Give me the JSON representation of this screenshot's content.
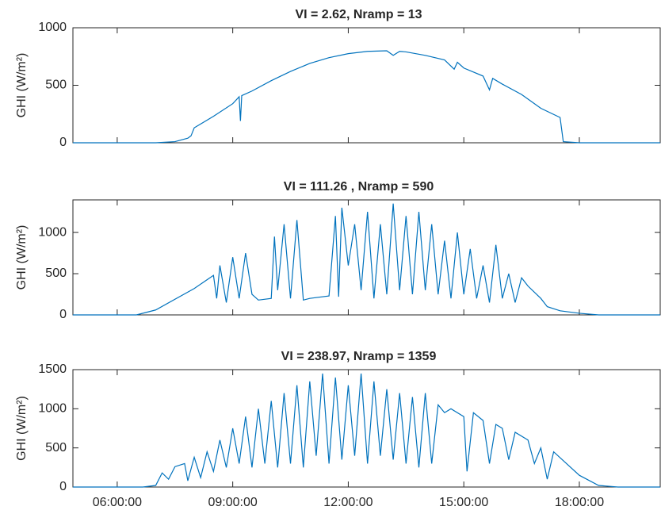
{
  "chart_data": [
    {
      "type": "line",
      "title": "VI = 2.62, Nramp = 13",
      "y_label": "GHI (W/m²)",
      "xlim": [
        "04:51",
        "20:06"
      ],
      "xticks": [
        "06:00:00",
        "09:00:00",
        "12:00:00",
        "15:00:00",
        "18:00:00"
      ],
      "ylim": [
        0,
        1000
      ],
      "yticks": [
        0,
        500,
        1000
      ],
      "series": [
        {
          "color": "#0072bd",
          "x": [
            "04:51",
            "07:00",
            "07:30",
            "07:50",
            "07:55",
            "08:00",
            "08:30",
            "09:00",
            "09:10",
            "09:12",
            "09:14",
            "09:30",
            "10:00",
            "10:30",
            "11:00",
            "11:30",
            "12:00",
            "12:30",
            "13:00",
            "13:10",
            "13:20",
            "13:30",
            "14:00",
            "14:30",
            "14:45",
            "14:50",
            "15:00",
            "15:30",
            "15:40",
            "15:45",
            "16:00",
            "16:30",
            "17:00",
            "17:30",
            "17:35",
            "18:00",
            "20:06"
          ],
          "values": [
            0,
            0,
            10,
            40,
            60,
            130,
            230,
            340,
            400,
            190,
            410,
            450,
            540,
            620,
            690,
            740,
            775,
            795,
            800,
            760,
            795,
            790,
            760,
            720,
            640,
            700,
            650,
            580,
            460,
            560,
            510,
            420,
            300,
            220,
            10,
            0,
            0
          ]
        }
      ]
    },
    {
      "type": "line",
      "title": "VI = 111.26 , Nramp = 590",
      "y_label": "GHI (W/m²)",
      "xlim": [
        "04:51",
        "20:06"
      ],
      "xticks": [
        "06:00:00",
        "09:00:00",
        "12:00:00",
        "15:00:00",
        "18:00:00"
      ],
      "ylim": [
        0,
        1395
      ],
      "yticks": [
        0,
        500,
        1000
      ],
      "series": [
        {
          "color": "#0072bd",
          "x": [
            "04:51",
            "06:30",
            "07:00",
            "08:00",
            "08:30",
            "08:35",
            "08:40",
            "08:50",
            "09:00",
            "09:10",
            "09:20",
            "09:30",
            "09:40",
            "10:00",
            "10:05",
            "10:10",
            "10:20",
            "10:30",
            "10:40",
            "10:50",
            "11:00",
            "11:30",
            "11:40",
            "11:45",
            "11:50",
            "12:00",
            "12:10",
            "12:20",
            "12:30",
            "12:40",
            "12:50",
            "13:00",
            "13:10",
            "13:20",
            "13:30",
            "13:40",
            "13:50",
            "14:00",
            "14:10",
            "14:20",
            "14:30",
            "14:40",
            "14:50",
            "15:00",
            "15:10",
            "15:20",
            "15:30",
            "15:40",
            "15:50",
            "16:00",
            "16:10",
            "16:20",
            "16:30",
            "16:40",
            "17:00",
            "17:10",
            "17:30",
            "18:00",
            "18:30",
            "20:06"
          ],
          "values": [
            0,
            0,
            60,
            320,
            480,
            200,
            600,
            150,
            700,
            200,
            750,
            250,
            180,
            200,
            950,
            300,
            1100,
            200,
            1150,
            180,
            200,
            230,
            1200,
            220,
            1300,
            600,
            1100,
            300,
            1250,
            200,
            1100,
            250,
            1350,
            300,
            1200,
            250,
            1250,
            300,
            1100,
            250,
            900,
            200,
            1000,
            250,
            800,
            200,
            600,
            150,
            850,
            200,
            500,
            150,
            450,
            350,
            200,
            100,
            50,
            20,
            0,
            0
          ]
        }
      ]
    },
    {
      "type": "line",
      "title": "VI = 238.97, Nramp = 1359",
      "y_label": "GHI (W/m²)",
      "xlim": [
        "04:51",
        "20:06"
      ],
      "xticks": [
        "06:00:00",
        "09:00:00",
        "12:00:00",
        "15:00:00",
        "18:00:00"
      ],
      "ylim": [
        0,
        1500
      ],
      "yticks": [
        0,
        500,
        1000,
        1500
      ],
      "series": [
        {
          "color": "#0072bd",
          "x": [
            "04:51",
            "06:40",
            "07:00",
            "07:10",
            "07:20",
            "07:30",
            "07:45",
            "07:50",
            "08:00",
            "08:10",
            "08:20",
            "08:30",
            "08:40",
            "08:50",
            "09:00",
            "09:10",
            "09:20",
            "09:30",
            "09:40",
            "09:50",
            "10:00",
            "10:10",
            "10:20",
            "10:30",
            "10:40",
            "10:50",
            "11:00",
            "11:10",
            "11:20",
            "11:30",
            "11:40",
            "11:50",
            "12:00",
            "12:10",
            "12:20",
            "12:30",
            "12:40",
            "12:50",
            "13:00",
            "13:10",
            "13:20",
            "13:30",
            "13:40",
            "13:50",
            "14:00",
            "14:10",
            "14:20",
            "14:30",
            "14:40",
            "15:00",
            "15:05",
            "15:15",
            "15:30",
            "15:40",
            "15:50",
            "16:00",
            "16:10",
            "16:20",
            "16:40",
            "16:50",
            "17:00",
            "17:10",
            "17:20",
            "17:40",
            "18:00",
            "18:30",
            "19:00",
            "20:06"
          ],
          "values": [
            0,
            0,
            20,
            180,
            100,
            260,
            300,
            80,
            380,
            120,
            450,
            200,
            600,
            250,
            750,
            300,
            900,
            250,
            1000,
            300,
            1100,
            250,
            1200,
            300,
            1300,
            250,
            1350,
            400,
            1450,
            300,
            1400,
            350,
            1300,
            400,
            1450,
            300,
            1350,
            400,
            1250,
            350,
            1200,
            300,
            1150,
            250,
            1200,
            300,
            1050,
            950,
            1000,
            900,
            200,
            950,
            850,
            300,
            800,
            750,
            350,
            700,
            600,
            300,
            500,
            100,
            450,
            300,
            150,
            20,
            0,
            0
          ]
        }
      ]
    }
  ]
}
